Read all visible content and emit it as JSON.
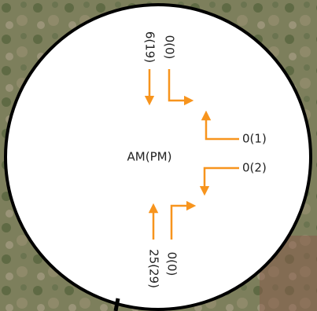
{
  "center_label": "AM(PM)",
  "movements": [
    {
      "label": "6(19)"
    },
    {
      "label": "0(0)"
    },
    {
      "label": "0(1)"
    },
    {
      "label": "0(2)"
    },
    {
      "label": "25(29)"
    },
    {
      "label": "0(0)"
    }
  ]
}
